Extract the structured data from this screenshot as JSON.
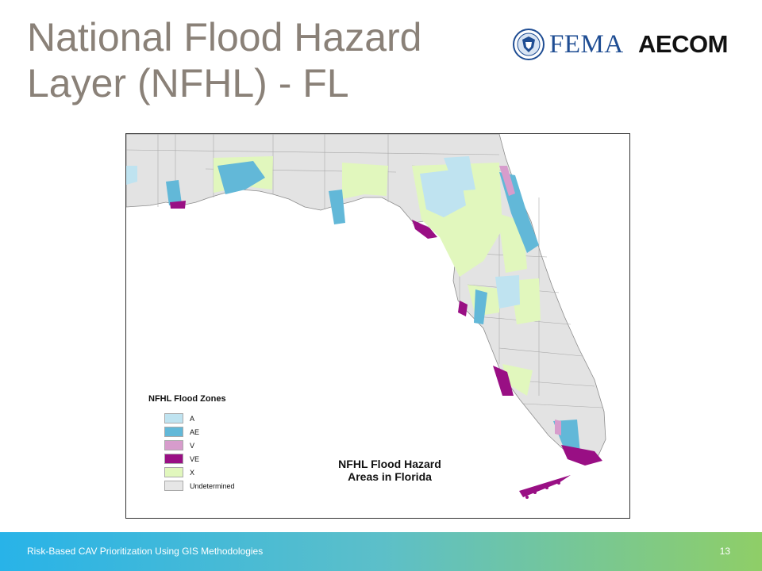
{
  "title_line1": "National Flood Hazard",
  "title_line2": "Layer (NFHL) - FL",
  "logos": {
    "fema": "FEMA",
    "aecom": "AECOM",
    "fema_icon": "dhs-seal-icon"
  },
  "map": {
    "caption_line1": "NFHL Flood Hazard",
    "caption_line2": "Areas in Florida",
    "legend": {
      "title": "NFHL Flood Zones",
      "items": [
        {
          "label": "A",
          "color": "#bfe3f0"
        },
        {
          "label": "AE",
          "color": "#62b8d8"
        },
        {
          "label": "V",
          "color": "#d79ccc"
        },
        {
          "label": "VE",
          "color": "#990f84"
        },
        {
          "label": "X",
          "color": "#e1f7bd"
        },
        {
          "label": "Undetermined",
          "color": "#e6e6e6"
        }
      ]
    },
    "colors": {
      "land": "#e3e3e3",
      "county_line": "#9a9a9a",
      "water": "#ffffff"
    }
  },
  "footer": {
    "text": "Risk-Based CAV Prioritization Using GIS Methodologies",
    "page": "13"
  }
}
